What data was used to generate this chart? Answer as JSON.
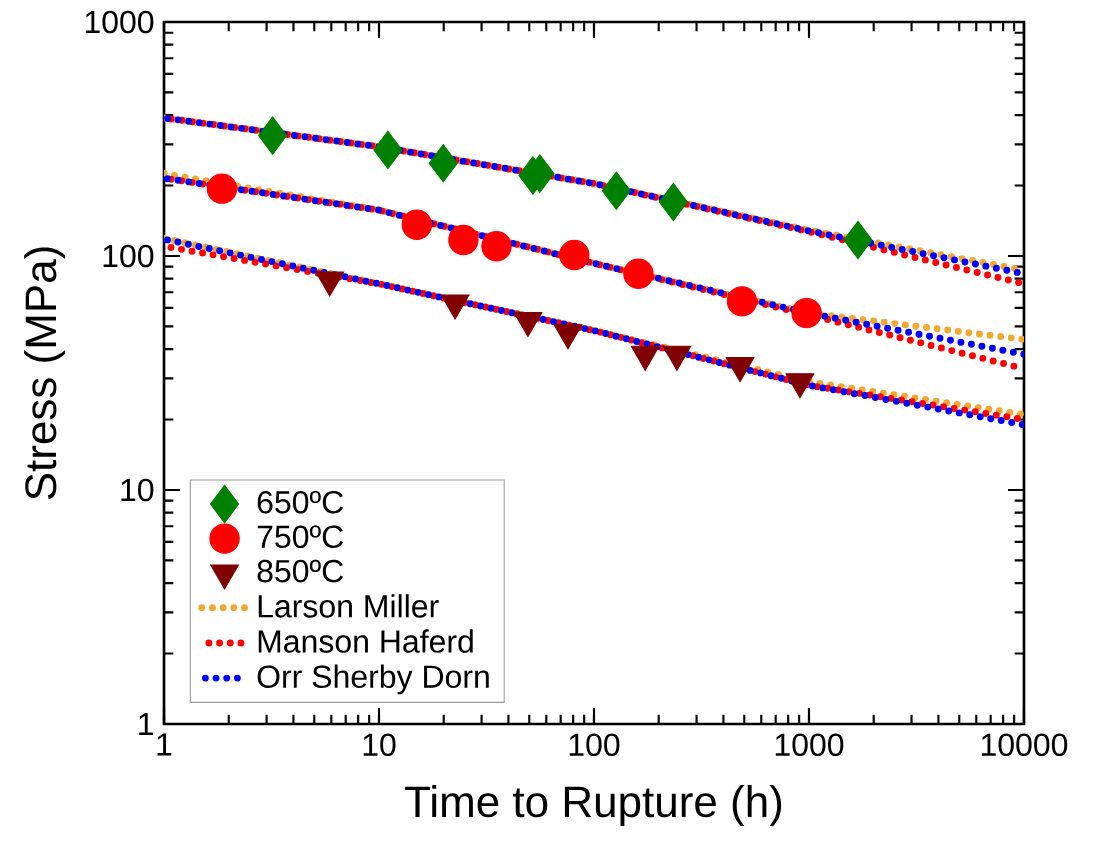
{
  "chart_data": {
    "type": "scatter",
    "xlabel": "Time to Rupture (h)",
    "ylabel": "Stress (MPa)",
    "log": "xy",
    "xlim": [
      1,
      10000
    ],
    "ylim": [
      1,
      1000
    ],
    "xticks": [
      1,
      10,
      100,
      1000,
      10000
    ],
    "yticks": [
      1,
      10,
      100,
      1000
    ],
    "legend": "bottom left",
    "grid": false,
    "series": [
      {
        "name": "650ºC",
        "marker": "diamond",
        "color": "#008000",
        "x": [
          3.2,
          11,
          19.9,
          52,
          56,
          127,
          234,
          1690
        ],
        "values": [
          327,
          284,
          249,
          221,
          225,
          190,
          170,
          117
        ]
      },
      {
        "name": "750ºC",
        "marker": "circle",
        "color": "#ff0000",
        "x": [
          1.86,
          15,
          24.7,
          35.2,
          81,
          161,
          488,
          975
        ],
        "values": [
          194,
          136,
          117,
          110,
          101,
          84,
          64,
          57
        ]
      },
      {
        "name": "850ºC",
        "marker": "triangle",
        "color": "#800000",
        "x": [
          5.9,
          22.6,
          49.3,
          75.7,
          173,
          243,
          478,
          908
        ],
        "values": [
          79,
          63,
          53,
          47,
          38,
          38,
          34,
          29
        ]
      },
      {
        "name": "Larson Miller",
        "type": "line",
        "line_style": "dotted",
        "color": "#f0a830",
        "x": [
          1,
          10,
          100,
          1000,
          10000
        ],
        "values": [
          389,
          293,
          204,
          129,
          87
        ]
      },
      {
        "name": "Manson Haferd",
        "type": "line",
        "line_style": "dotted",
        "color": "#ff0000",
        "x": [
          1,
          10,
          100,
          1000,
          10000
        ],
        "values": [
          389,
          293,
          204,
          127,
          76
        ]
      },
      {
        "name": "Orr Sherby Dorn",
        "type": "line",
        "line_style": "dotted",
        "color": "#0000ff",
        "x": [
          1,
          10,
          100,
          1000,
          10000
        ],
        "values": [
          389,
          293,
          204,
          128,
          84
        ]
      },
      {
        "type": "line",
        "line_style": "dotted",
        "color": "#f0a830",
        "x": [
          1,
          10,
          100,
          1000,
          10000
        ],
        "values": [
          225,
          157,
          93,
          57,
          44
        ]
      },
      {
        "type": "line",
        "line_style": "dotted",
        "color": "#ff0000",
        "x": [
          1,
          10,
          100,
          1000,
          10000
        ],
        "values": [
          215,
          157,
          93,
          56,
          33
        ]
      },
      {
        "type": "line",
        "line_style": "dotted",
        "color": "#0000ff",
        "x": [
          1,
          10,
          100,
          1000,
          10000
        ],
        "values": [
          215,
          157,
          93,
          57,
          38
        ]
      },
      {
        "type": "line",
        "line_style": "dotted",
        "color": "#f0a830",
        "x": [
          1,
          10,
          100,
          1000,
          10000
        ],
        "values": [
          119,
          76,
          48,
          29,
          21
        ]
      },
      {
        "type": "line",
        "line_style": "dotted",
        "color": "#ff0000",
        "x": [
          1,
          10,
          100,
          1000,
          10000
        ],
        "values": [
          110,
          76,
          48,
          28,
          20
        ]
      },
      {
        "type": "line",
        "line_style": "dotted",
        "color": "#0000ff",
        "x": [
          1,
          10,
          100,
          1000,
          10000
        ],
        "values": [
          118,
          76,
          48,
          28,
          19
        ]
      }
    ]
  }
}
